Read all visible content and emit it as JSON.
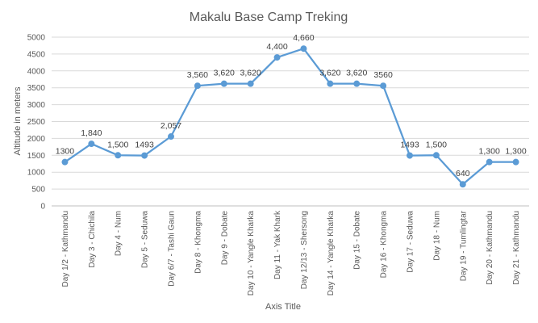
{
  "chart_data": {
    "type": "line",
    "title": "Makalu Base Camp Treking",
    "xlabel": "Axis Title",
    "ylabel": "Altitude in meters",
    "ylim": [
      0,
      5000
    ],
    "yticks": [
      "0",
      "500",
      "1000",
      "1500",
      "2000",
      "2500",
      "3000",
      "3500",
      "4000",
      "4500",
      "5000"
    ],
    "grid": true,
    "legend": "none",
    "color": "#5b9bd5",
    "categories": [
      "Day 1/2 - Kathmandu",
      "Day 3 - Chichila",
      "Day 4 - Num",
      "Day 5 - Seduwa",
      "Day 6/7 - Tashi Gaun",
      "Day 8 - Khongma",
      "Day 9 - Dobate",
      "Day 10 - Yangle Kharka",
      "Day 11 - Yak Khark",
      "Day 12/13 - Shersong",
      "Day 14 - Yangle Kharka",
      "Day 15 - Dobate",
      "Day 16 - Khongma",
      "Day 17 - Seduwa",
      "Day 18 - Num",
      "Day 19 - Tumlingtar",
      "Day 20 - Kathmandu",
      "Day 21 - Kathmandu"
    ],
    "values": [
      1300,
      1840,
      1500,
      1493,
      2057,
      3560,
      3620,
      3620,
      4400,
      4660,
      3620,
      3620,
      3560,
      1493,
      1500,
      640,
      1300,
      1300
    ],
    "data_labels": [
      "1300",
      "1,840",
      "1,500",
      "1493",
      "2,057",
      "3,560",
      "3,620",
      "3,620",
      "4,400",
      "4,660",
      "3,620",
      "3,620",
      "3560",
      "1493",
      "1,500",
      "640",
      "1,300",
      "1,300"
    ]
  }
}
